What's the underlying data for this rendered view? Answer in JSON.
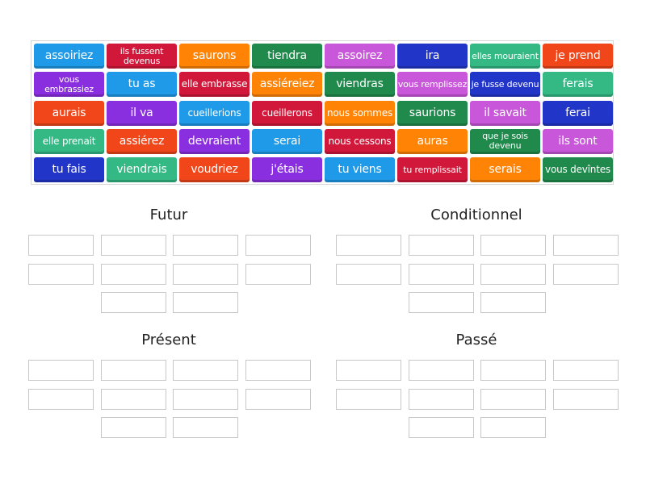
{
  "tiles": [
    {
      "text": "assoiriez",
      "color": "#1f9ae8"
    },
    {
      "text": "ils fussent devenus",
      "color": "#d2183a"
    },
    {
      "text": "saurons",
      "color": "#ff8304"
    },
    {
      "text": "tiendra",
      "color": "#1f8a4c"
    },
    {
      "text": "assoirez",
      "color": "#c957d9"
    },
    {
      "text": "ira",
      "color": "#2235c9"
    },
    {
      "text": "elles mouraient",
      "color": "#34b985"
    },
    {
      "text": "je prend",
      "color": "#f0461a"
    },
    {
      "text": "vous embrassiez",
      "color": "#8a2fe0"
    },
    {
      "text": "tu as",
      "color": "#1f9ae8"
    },
    {
      "text": "elle embrasse",
      "color": "#d2183a"
    },
    {
      "text": "assiéreiez",
      "color": "#ff8304"
    },
    {
      "text": "viendras",
      "color": "#1f8a4c"
    },
    {
      "text": "vous remplissez",
      "color": "#c957d9"
    },
    {
      "text": "je fusse devenu",
      "color": "#2235c9"
    },
    {
      "text": "ferais",
      "color": "#34b985"
    },
    {
      "text": "aurais",
      "color": "#f0461a"
    },
    {
      "text": "il va",
      "color": "#8a2fe0"
    },
    {
      "text": "cueillerions",
      "color": "#1f9ae8"
    },
    {
      "text": "cueillerons",
      "color": "#d2183a"
    },
    {
      "text": "nous sommes",
      "color": "#ff8304"
    },
    {
      "text": "saurions",
      "color": "#1f8a4c"
    },
    {
      "text": "il savait",
      "color": "#c957d9"
    },
    {
      "text": "ferai",
      "color": "#2235c9"
    },
    {
      "text": "elle prenait",
      "color": "#34b985"
    },
    {
      "text": "assiérez",
      "color": "#f0461a"
    },
    {
      "text": "devraient",
      "color": "#8a2fe0"
    },
    {
      "text": "serai",
      "color": "#1f9ae8"
    },
    {
      "text": "nous cessons",
      "color": "#d2183a"
    },
    {
      "text": "auras",
      "color": "#ff8304"
    },
    {
      "text": "que je sois devenu",
      "color": "#1f8a4c"
    },
    {
      "text": "ils sont",
      "color": "#c957d9"
    },
    {
      "text": "tu fais",
      "color": "#2235c9"
    },
    {
      "text": "viendrais",
      "color": "#34b985"
    },
    {
      "text": "voudriez",
      "color": "#f0461a"
    },
    {
      "text": "j'étais",
      "color": "#8a2fe0"
    },
    {
      "text": "tu viens",
      "color": "#1f9ae8"
    },
    {
      "text": "tu remplissait",
      "color": "#d2183a"
    },
    {
      "text": "serais",
      "color": "#ff8304"
    },
    {
      "text": "vous devîntes",
      "color": "#1f8a4c"
    }
  ],
  "groups": [
    {
      "title": "Futur"
    },
    {
      "title": "Conditionnel"
    },
    {
      "title": "Présent"
    },
    {
      "title": "Passé"
    }
  ]
}
